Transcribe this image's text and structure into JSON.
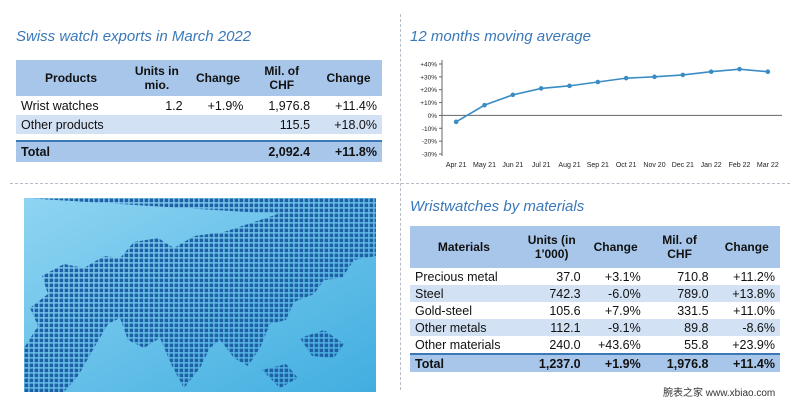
{
  "exports": {
    "title": "Swiss watch exports in March 2022",
    "headers": [
      "Products",
      "Units in mio.",
      "Change",
      "Mil. of CHF",
      "Change"
    ],
    "rows": [
      {
        "product": "Wrist watches",
        "units": "1.2",
        "change_units": "+1.9%",
        "chf": "1,976.8",
        "change_chf": "+11.4%"
      },
      {
        "product": "Other products",
        "units": "",
        "change_units": "",
        "chf": "115.5",
        "change_chf": "+18.0%"
      }
    ],
    "total": {
      "product": "Total",
      "units": "",
      "change_units": "",
      "chf": "2,092.4",
      "change_chf": "+11.8%"
    }
  },
  "chart_data": {
    "type": "line",
    "title": "12 months moving average",
    "categories": [
      "Apr 21",
      "May 21",
      "Jun 21",
      "Jul 21",
      "Aug 21",
      "Sep 21",
      "Oct 21",
      "Nov 20",
      "Dec 21",
      "Jan 22",
      "Feb 22",
      "Mar 22"
    ],
    "yticks": [
      "+40%",
      "+30%",
      "+20%",
      "+10%",
      "0%",
      "-10%",
      "-20%",
      "-30%"
    ],
    "ylim": [
      -30,
      40
    ],
    "series": [
      {
        "values": [
          -5,
          8,
          16,
          21,
          23,
          26,
          29,
          30,
          31.5,
          34,
          36,
          34
        ]
      }
    ],
    "grid": false,
    "legend": "none",
    "line_color": "#3a8cc4"
  },
  "materials": {
    "title": "Wristwatches by materials",
    "headers": [
      "Materials",
      "Units (in 1'000)",
      "Change",
      "Mil. of CHF",
      "Change"
    ],
    "rows": [
      {
        "material": "Precious metal",
        "units": "37.0",
        "change_units": "+3.1%",
        "chf": "710.8",
        "change_chf": "+11.2%"
      },
      {
        "material": "Steel",
        "units": "742.3",
        "change_units": "-6.0%",
        "chf": "789.0",
        "change_chf": "+13.8%"
      },
      {
        "material": "Gold-steel",
        "units": "105.6",
        "change_units": "+7.9%",
        "chf": "331.5",
        "change_chf": "+11.0%"
      },
      {
        "material": "Other metals",
        "units": "112.1",
        "change_units": "-9.1%",
        "chf": "89.8",
        "change_chf": "-8.6%"
      },
      {
        "material": "Other materials",
        "units": "240.0",
        "change_units": "+43.6%",
        "chf": "55.8",
        "change_chf": "+23.9%"
      }
    ],
    "total": {
      "material": "Total",
      "units": "1,237.0",
      "change_units": "+1.9%",
      "chf": "1,976.8",
      "change_chf": "+11.4%"
    }
  },
  "map": {
    "icon": "dotted-world-map-icon"
  },
  "watermark": "腕表之家 www.xbiao.com"
}
